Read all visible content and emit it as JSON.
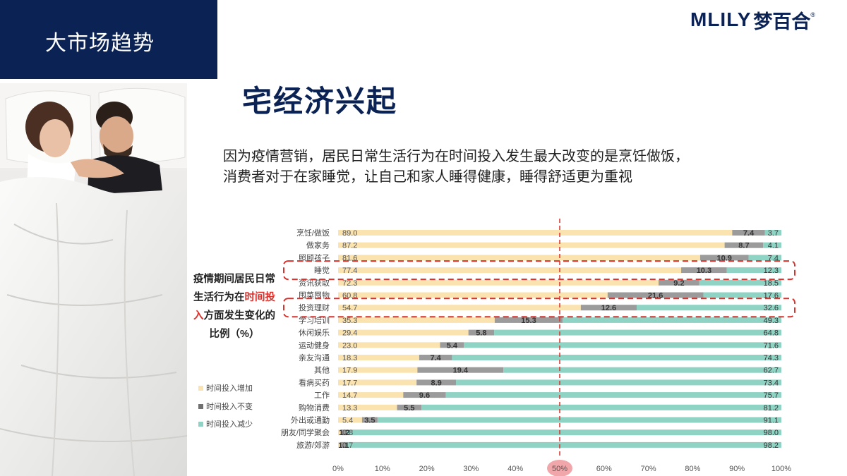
{
  "header": {
    "section_title": "大市场趋势"
  },
  "logo": {
    "brand": "MLILY",
    "brand_cn": "梦百合",
    "reg_mark": "®"
  },
  "slide": {
    "title": "宅经济兴起",
    "desc_line1": "因为疫情营销，居民日常生活行为在时间投入发生最大改变的是烹饪做饭，",
    "desc_line2": "消费者对于在家睡觉，让自己和家人睡得健康，睡得舒适更为重视"
  },
  "caption": {
    "part1": "疫情期间居民日常生活行为在",
    "highlight": "时间投入",
    "part2": "方面发生变化的比例（%）"
  },
  "colors": {
    "brand_navy": "#0b2255",
    "increase": "#fbe3b0",
    "unchanged": "#9b9b9b",
    "decrease": "#8ed3c4",
    "highlight_red": "#d9312c"
  },
  "chart_data": {
    "type": "bar",
    "orientation": "horizontal",
    "stacked": true,
    "percent_stacked": true,
    "categories": [
      "烹饪/做饭",
      "做家务",
      "照顾孩子",
      "睡觉",
      "资讯获取",
      "囤菜囤物",
      "投资理财",
      "学习培训",
      "休闲娱乐",
      "运动健身",
      "亲友沟通",
      "其他",
      "看病买药",
      "工作",
      "购物消费",
      "外出或通勤",
      "朋友/同学聚会",
      "旅游/郊游"
    ],
    "series": [
      {
        "name": "时间投入增加",
        "values": [
          89.0,
          87.2,
          81.6,
          77.4,
          72.3,
          60.8,
          54.7,
          35.3,
          29.4,
          23.0,
          18.3,
          17.9,
          17.7,
          14.7,
          13.3,
          5.4,
          0.8,
          0.7
        ]
      },
      {
        "name": "时间投入不变",
        "values": [
          7.4,
          8.7,
          10.9,
          10.3,
          9.2,
          21.6,
          12.6,
          15.3,
          5.8,
          5.4,
          7.4,
          19.4,
          8.9,
          9.6,
          5.5,
          3.5,
          1.2,
          1.1
        ]
      },
      {
        "name": "时间投入减少",
        "values": [
          3.7,
          4.1,
          7.4,
          12.3,
          18.5,
          17.6,
          32.6,
          49.3,
          64.8,
          71.6,
          74.3,
          62.7,
          73.4,
          75.7,
          81.2,
          91.1,
          98.0,
          98.2
        ]
      }
    ],
    "x_ticks": [
      "0%",
      "10%",
      "20%",
      "30%",
      "40%",
      "50%",
      "60%",
      "70%",
      "80%",
      "90%",
      "100%"
    ],
    "xlim": [
      0,
      100
    ],
    "reference_line": 50,
    "highlighted_categories": [
      "睡觉",
      "投资理财"
    ],
    "legend_position": "left"
  }
}
